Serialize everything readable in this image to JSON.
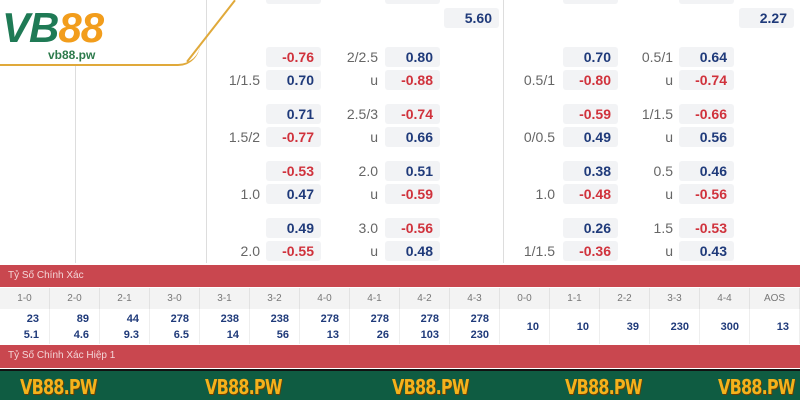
{
  "logo": {
    "brand_v": "VB",
    "brand_8": "88",
    "domain": "vb88.pw"
  },
  "top_values": {
    "left": "5.60",
    "right": "2.27"
  },
  "odds_left": [
    {
      "h": "1/1.5",
      "h1": "-0.76",
      "h2": "0.70",
      "o": "2/2.5",
      "o1": "0.80",
      "u": "u",
      "o2": "-0.88"
    },
    {
      "h": "1.5/2",
      "h1": "0.71",
      "h2": "-0.77",
      "o": "2.5/3",
      "o1": "-0.74",
      "u": "u",
      "o2": "0.66"
    },
    {
      "h": "1.0",
      "h1": "-0.53",
      "h2": "0.47",
      "o": "2.0",
      "o1": "0.51",
      "u": "u",
      "o2": "-0.59"
    },
    {
      "h": "2.0",
      "h1": "0.49",
      "h2": "-0.55",
      "o": "3.0",
      "o1": "-0.56",
      "u": "u",
      "o2": "0.48"
    }
  ],
  "odds_right": [
    {
      "h": "0.5/1",
      "h1": "0.70",
      "h2": "-0.80",
      "o": "0.5/1",
      "o1": "0.64",
      "u": "u",
      "o2": "-0.74"
    },
    {
      "h": "0/0.5",
      "h1": "-0.59",
      "h2": "0.49",
      "o": "1/1.5",
      "o1": "-0.66",
      "u": "u",
      "o2": "0.56"
    },
    {
      "h": "1.0",
      "h1": "0.38",
      "h2": "-0.48",
      "o": "0.5",
      "o1": "0.46",
      "u": "u",
      "o2": "-0.56"
    },
    {
      "h": "1/1.5",
      "h1": "0.26",
      "h2": "-0.36",
      "o": "1.5",
      "o1": "-0.53",
      "u": "u",
      "o2": "0.43"
    }
  ],
  "correct_score": {
    "title": "Tỷ Số Chính Xác",
    "headers": [
      "1-0",
      "2-0",
      "2-1",
      "3-0",
      "3-1",
      "3-2",
      "4-0",
      "4-1",
      "4-2",
      "4-3",
      "0-0",
      "1-1",
      "2-2",
      "3-3",
      "4-4",
      "AOS"
    ],
    "values": [
      [
        "23",
        "5.1"
      ],
      [
        "89",
        "4.6"
      ],
      [
        "44",
        "9.3"
      ],
      [
        "278",
        "6.5"
      ],
      [
        "238",
        "14"
      ],
      [
        "238",
        "56"
      ],
      [
        "278",
        "13"
      ],
      [
        "278",
        "26"
      ],
      [
        "278",
        "103"
      ],
      [
        "278",
        "230"
      ],
      [
        "10"
      ],
      [
        "10"
      ],
      [
        "39"
      ],
      [
        "230"
      ],
      [
        "300"
      ],
      [
        "13"
      ]
    ]
  },
  "correct_score_ht": {
    "title": "Tỷ Số Chính Xác Hiệp 1"
  },
  "footer": {
    "watermarks": [
      "VB88.PW",
      "VB88.PW",
      "VB88.PW",
      "VB88.PW",
      "VB88.PW"
    ]
  },
  "colors": {
    "positive": "#1f3a7a",
    "negative": "#d0323c",
    "header_bar": "#c9474f",
    "footer_bg": "#0f5c42",
    "footer_text": "#f4b21c"
  }
}
